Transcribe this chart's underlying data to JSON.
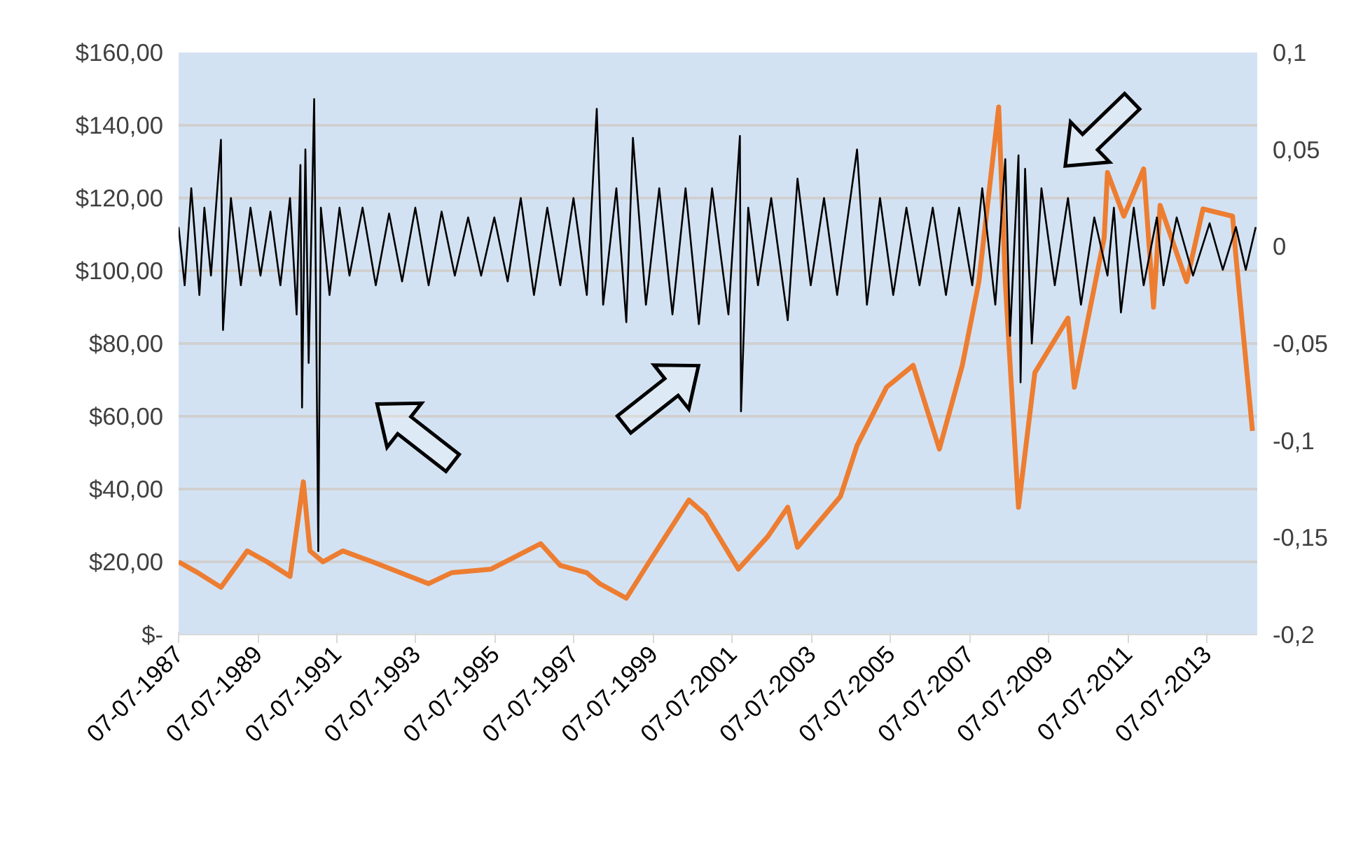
{
  "chart_data": {
    "type": "line",
    "xlim": [
      "1987-07-07",
      "2014-10-15"
    ],
    "xticks": [
      {
        "value": "1987-07-07",
        "label": "07-07-1987"
      },
      {
        "value": "1989-07-07",
        "label": "07-07-1989"
      },
      {
        "value": "1991-07-07",
        "label": "07-07-1991"
      },
      {
        "value": "1993-07-07",
        "label": "07-07-1993"
      },
      {
        "value": "1995-07-07",
        "label": "07-07-1995"
      },
      {
        "value": "1997-07-07",
        "label": "07-07-1997"
      },
      {
        "value": "1999-07-07",
        "label": "07-07-1999"
      },
      {
        "value": "2001-07-07",
        "label": "07-07-2001"
      },
      {
        "value": "2003-07-07",
        "label": "07-07-2003"
      },
      {
        "value": "2005-07-07",
        "label": "07-07-2005"
      },
      {
        "value": "2007-07-07",
        "label": "07-07-2007"
      },
      {
        "value": "2009-07-07",
        "label": "07-07-2009"
      },
      {
        "value": "2011-07-07",
        "label": "07-07-2011"
      },
      {
        "value": "2013-07-07",
        "label": "07-07-2013"
      }
    ],
    "ylim": [
      0,
      160
    ],
    "yticks": [
      {
        "value": 0,
        "label": "$-"
      },
      {
        "value": 20,
        "label": "$20,00"
      },
      {
        "value": 40,
        "label": "$40,00"
      },
      {
        "value": 60,
        "label": "$60,00"
      },
      {
        "value": 80,
        "label": "$80,00"
      },
      {
        "value": 100,
        "label": "$100,00"
      },
      {
        "value": 120,
        "label": "$120,00"
      },
      {
        "value": 140,
        "label": "$140,00"
      },
      {
        "value": 160,
        "label": "$160,00"
      }
    ],
    "y2lim": [
      -0.2,
      0.1
    ],
    "y2ticks": [
      {
        "value": -0.2,
        "label": "-0,2"
      },
      {
        "value": -0.15,
        "label": "-0,15"
      },
      {
        "value": -0.1,
        "label": "-0,1"
      },
      {
        "value": -0.05,
        "label": "-0,05"
      },
      {
        "value": 0,
        "label": "0"
      },
      {
        "value": 0.05,
        "label": "0,05"
      },
      {
        "value": 0.1,
        "label": "0,1"
      }
    ],
    "grid": "y",
    "series": [
      {
        "color": "#ed7d31",
        "x": [
          "1987-07-07",
          "1988-01",
          "1988-08",
          "1989-04",
          "1989-10",
          "1990-05",
          "1990-09",
          "1990-11",
          "1991-03",
          "1991-09",
          "1992-06",
          "1993-11",
          "1994-06",
          "1995-06",
          "1996-09",
          "1997-03",
          "1997-11",
          "1998-03",
          "1998-11",
          "1999-06",
          "2000-06",
          "2000-11",
          "2001-09",
          "2002-06",
          "2002-12",
          "2003-03",
          "2004-04",
          "2004-09",
          "2005-06",
          "2006-02",
          "2006-10",
          "2007-05",
          "2007-10",
          "2008-04",
          "2008-06",
          "2008-10",
          "2009-03",
          "2010-01",
          "2010-03",
          "2010-12",
          "2011-01",
          "2011-06",
          "2011-12",
          "2012-03",
          "2012-05",
          "2013-01",
          "2013-06",
          "2014-03",
          "2014-04",
          "2014-09"
        ],
        "values": [
          20,
          17,
          13,
          23,
          20,
          16,
          42,
          23,
          20,
          23,
          20,
          14,
          17,
          18,
          25,
          19,
          17,
          14,
          10,
          20,
          37,
          33,
          18,
          27,
          35,
          24,
          38,
          52,
          68,
          74,
          51,
          74,
          97,
          145,
          97,
          35,
          72,
          87,
          68,
          109,
          127,
          115,
          128,
          90,
          118,
          97,
          117,
          115,
          104,
          56
        ]
      },
      {
        "color": "#000000",
        "axis": "y2",
        "x": [
          "1987-07-07",
          "1987-09-01",
          "1987-11-01",
          "1988-01-15",
          "1988-03-01",
          "1988-05-01",
          "1988-08-01",
          "1988-08-20",
          "1988-11-01",
          "1989-02-01",
          "1989-05-01",
          "1989-08-01",
          "1989-11-01",
          "1990-02-01",
          "1990-05-01",
          "1990-07-01",
          "1990-08-05",
          "1990-08-20",
          "1990-09-20",
          "1990-10-20",
          "1990-12-10",
          "1991-01-17",
          "1991-02-10",
          "1991-05-01",
          "1991-08-01",
          "1991-11-01",
          "1992-03-01",
          "1992-07-01",
          "1992-11-01",
          "1993-03-01",
          "1993-07-01",
          "1993-11-01",
          "1994-03-01",
          "1994-07-01",
          "1994-11-01",
          "1995-03-01",
          "1995-07-01",
          "1995-11-01",
          "1996-03-01",
          "1996-07-01",
          "1996-11-01",
          "1997-03-01",
          "1997-07-01",
          "1997-11-01",
          "1998-02-01",
          "1998-04-01",
          "1998-08-01",
          "1998-11-01",
          "1999-01-01",
          "1999-05-01",
          "1999-09-01",
          "2000-01-01",
          "2000-05-01",
          "2000-09-01",
          "2001-01-01",
          "2001-06-01",
          "2001-09-15",
          "2001-09-25",
          "2001-12-01",
          "2002-03-01",
          "2002-07-01",
          "2002-12-01",
          "2003-03-01",
          "2003-07-01",
          "2003-11-01",
          "2004-03-01",
          "2004-09-01",
          "2004-12-01",
          "2005-04-01",
          "2005-08-01",
          "2005-12-01",
          "2006-04-01",
          "2006-08-01",
          "2006-12-01",
          "2007-04-01",
          "2007-08-01",
          "2007-11-01",
          "2008-03-01",
          "2008-06-01",
          "2008-07-15",
          "2008-10-01",
          "2008-10-20",
          "2008-12-01",
          "2009-02-01",
          "2009-05-01",
          "2009-09-01",
          "2010-01-01",
          "2010-05-01",
          "2010-09-01",
          "2011-01-01",
          "2011-03-01",
          "2011-05-05",
          "2011-09-01",
          "2011-12-01",
          "2012-04-01",
          "2012-06-01",
          "2012-10-01",
          "2013-03-01",
          "2013-08-01",
          "2013-12-01",
          "2014-04-01",
          "2014-07-01",
          "2014-10-01"
        ],
        "values": [
          0.01,
          -0.02,
          0.03,
          -0.025,
          0.02,
          -0.015,
          0.055,
          -0.043,
          0.025,
          -0.02,
          0.02,
          -0.015,
          0.018,
          -0.02,
          0.025,
          -0.035,
          0.042,
          -0.083,
          0.05,
          -0.06,
          0.076,
          -0.157,
          0.02,
          -0.025,
          0.02,
          -0.015,
          0.02,
          -0.02,
          0.017,
          -0.018,
          0.02,
          -0.02,
          0.018,
          -0.015,
          0.015,
          -0.015,
          0.015,
          -0.018,
          0.025,
          -0.025,
          0.02,
          -0.02,
          0.025,
          -0.025,
          0.071,
          -0.03,
          0.03,
          -0.039,
          0.056,
          -0.03,
          0.03,
          -0.035,
          0.03,
          -0.04,
          0.03,
          -0.035,
          0.057,
          -0.085,
          0.02,
          -0.02,
          0.025,
          -0.038,
          0.035,
          -0.02,
          0.025,
          -0.025,
          0.05,
          -0.03,
          0.025,
          -0.025,
          0.02,
          -0.02,
          0.02,
          -0.025,
          0.02,
          -0.02,
          0.03,
          -0.03,
          0.045,
          -0.046,
          0.047,
          -0.07,
          0.04,
          -0.05,
          0.03,
          -0.02,
          0.025,
          -0.03,
          0.015,
          -0.015,
          0.02,
          -0.034,
          0.02,
          -0.02,
          0.015,
          -0.02,
          0.015,
          -0.015,
          0.012,
          -0.012,
          0.01,
          -0.012,
          0.01
        ]
      }
    ]
  }
}
